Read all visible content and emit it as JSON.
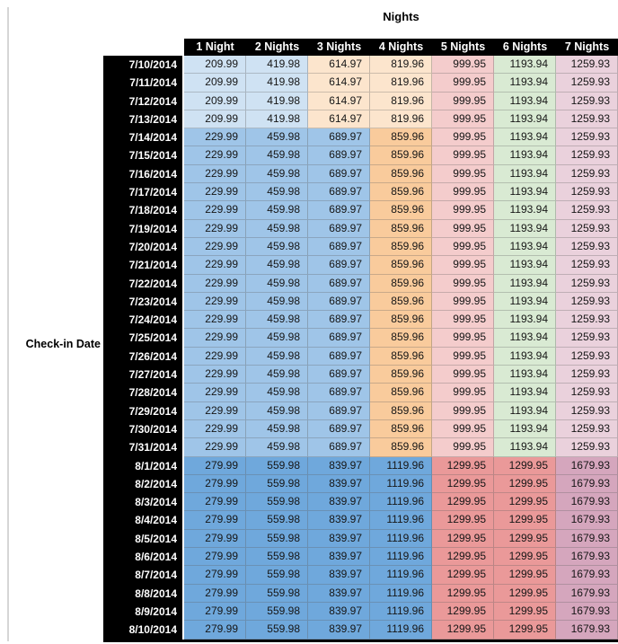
{
  "title": "Nights",
  "row_axis_label": "Check-in Date",
  "columns": [
    "1 Night",
    "2 Nights",
    "3 Nights",
    "4 Nights",
    "5 Nights",
    "6 Nights",
    "7 Nights"
  ],
  "styles": {
    "header_bg": "#000000",
    "header_text_color": "#ffffff",
    "date_cell_bg": "#000000",
    "date_text_color": "#ffffff",
    "value_text_color": "#161616",
    "left_rule_color": "#d6d6d6",
    "group_colors": {
      "a": [
        "#cfe2f3",
        "#cfe2f3",
        "#fce5cd",
        "#fce5cd",
        "#f4cccc",
        "#d9ead3",
        "#ead1dc"
      ],
      "b": [
        "#9fc5e8",
        "#9fc5e8",
        "#9fc5e8",
        "#f9cb9c",
        "#f4cccc",
        "#d9ead3",
        "#ead1dc"
      ],
      "c": [
        "#6fa8dc",
        "#6fa8dc",
        "#6fa8dc",
        "#6fa8dc",
        "#ea9999",
        "#ea9999",
        "#d5a6bd"
      ]
    }
  },
  "chart_data": {
    "type": "table",
    "title": "Nights",
    "row_label": "Check-in Date",
    "columns": [
      "1 Night",
      "2 Nights",
      "3 Nights",
      "4 Nights",
      "5 Nights",
      "6 Nights",
      "7 Nights"
    ],
    "rows": [
      {
        "date": "7/10/2014",
        "group": "a",
        "values": [
          "209.99",
          "419.98",
          "614.97",
          "819.96",
          "999.95",
          "1193.94",
          "1259.93"
        ]
      },
      {
        "date": "7/11/2014",
        "group": "a",
        "values": [
          "209.99",
          "419.98",
          "614.97",
          "819.96",
          "999.95",
          "1193.94",
          "1259.93"
        ]
      },
      {
        "date": "7/12/2014",
        "group": "a",
        "values": [
          "209.99",
          "419.98",
          "614.97",
          "819.96",
          "999.95",
          "1193.94",
          "1259.93"
        ]
      },
      {
        "date": "7/13/2014",
        "group": "a",
        "values": [
          "209.99",
          "419.98",
          "614.97",
          "819.96",
          "999.95",
          "1193.94",
          "1259.93"
        ]
      },
      {
        "date": "7/14/2014",
        "group": "b",
        "values": [
          "229.99",
          "459.98",
          "689.97",
          "859.96",
          "999.95",
          "1193.94",
          "1259.93"
        ]
      },
      {
        "date": "7/15/2014",
        "group": "b",
        "values": [
          "229.99",
          "459.98",
          "689.97",
          "859.96",
          "999.95",
          "1193.94",
          "1259.93"
        ]
      },
      {
        "date": "7/16/2014",
        "group": "b",
        "values": [
          "229.99",
          "459.98",
          "689.97",
          "859.96",
          "999.95",
          "1193.94",
          "1259.93"
        ]
      },
      {
        "date": "7/17/2014",
        "group": "b",
        "values": [
          "229.99",
          "459.98",
          "689.97",
          "859.96",
          "999.95",
          "1193.94",
          "1259.93"
        ]
      },
      {
        "date": "7/18/2014",
        "group": "b",
        "values": [
          "229.99",
          "459.98",
          "689.97",
          "859.96",
          "999.95",
          "1193.94",
          "1259.93"
        ]
      },
      {
        "date": "7/19/2014",
        "group": "b",
        "values": [
          "229.99",
          "459.98",
          "689.97",
          "859.96",
          "999.95",
          "1193.94",
          "1259.93"
        ]
      },
      {
        "date": "7/20/2014",
        "group": "b",
        "values": [
          "229.99",
          "459.98",
          "689.97",
          "859.96",
          "999.95",
          "1193.94",
          "1259.93"
        ]
      },
      {
        "date": "7/21/2014",
        "group": "b",
        "values": [
          "229.99",
          "459.98",
          "689.97",
          "859.96",
          "999.95",
          "1193.94",
          "1259.93"
        ]
      },
      {
        "date": "7/22/2014",
        "group": "b",
        "values": [
          "229.99",
          "459.98",
          "689.97",
          "859.96",
          "999.95",
          "1193.94",
          "1259.93"
        ]
      },
      {
        "date": "7/23/2014",
        "group": "b",
        "values": [
          "229.99",
          "459.98",
          "689.97",
          "859.96",
          "999.95",
          "1193.94",
          "1259.93"
        ]
      },
      {
        "date": "7/24/2014",
        "group": "b",
        "values": [
          "229.99",
          "459.98",
          "689.97",
          "859.96",
          "999.95",
          "1193.94",
          "1259.93"
        ]
      },
      {
        "date": "7/25/2014",
        "group": "b",
        "values": [
          "229.99",
          "459.98",
          "689.97",
          "859.96",
          "999.95",
          "1193.94",
          "1259.93"
        ]
      },
      {
        "date": "7/26/2014",
        "group": "b",
        "values": [
          "229.99",
          "459.98",
          "689.97",
          "859.96",
          "999.95",
          "1193.94",
          "1259.93"
        ]
      },
      {
        "date": "7/27/2014",
        "group": "b",
        "values": [
          "229.99",
          "459.98",
          "689.97",
          "859.96",
          "999.95",
          "1193.94",
          "1259.93"
        ]
      },
      {
        "date": "7/28/2014",
        "group": "b",
        "values": [
          "229.99",
          "459.98",
          "689.97",
          "859.96",
          "999.95",
          "1193.94",
          "1259.93"
        ]
      },
      {
        "date": "7/29/2014",
        "group": "b",
        "values": [
          "229.99",
          "459.98",
          "689.97",
          "859.96",
          "999.95",
          "1193.94",
          "1259.93"
        ]
      },
      {
        "date": "7/30/2014",
        "group": "b",
        "values": [
          "229.99",
          "459.98",
          "689.97",
          "859.96",
          "999.95",
          "1193.94",
          "1259.93"
        ]
      },
      {
        "date": "7/31/2014",
        "group": "b",
        "values": [
          "229.99",
          "459.98",
          "689.97",
          "859.96",
          "999.95",
          "1193.94",
          "1259.93"
        ]
      },
      {
        "date": "8/1/2014",
        "group": "c",
        "values": [
          "279.99",
          "559.98",
          "839.97",
          "1119.96",
          "1299.95",
          "1299.95",
          "1679.93"
        ]
      },
      {
        "date": "8/2/2014",
        "group": "c",
        "values": [
          "279.99",
          "559.98",
          "839.97",
          "1119.96",
          "1299.95",
          "1299.95",
          "1679.93"
        ]
      },
      {
        "date": "8/3/2014",
        "group": "c",
        "values": [
          "279.99",
          "559.98",
          "839.97",
          "1119.96",
          "1299.95",
          "1299.95",
          "1679.93"
        ]
      },
      {
        "date": "8/4/2014",
        "group": "c",
        "values": [
          "279.99",
          "559.98",
          "839.97",
          "1119.96",
          "1299.95",
          "1299.95",
          "1679.93"
        ]
      },
      {
        "date": "8/5/2014",
        "group": "c",
        "values": [
          "279.99",
          "559.98",
          "839.97",
          "1119.96",
          "1299.95",
          "1299.95",
          "1679.93"
        ]
      },
      {
        "date": "8/6/2014",
        "group": "c",
        "values": [
          "279.99",
          "559.98",
          "839.97",
          "1119.96",
          "1299.95",
          "1299.95",
          "1679.93"
        ]
      },
      {
        "date": "8/7/2014",
        "group": "c",
        "values": [
          "279.99",
          "559.98",
          "839.97",
          "1119.96",
          "1299.95",
          "1299.95",
          "1679.93"
        ]
      },
      {
        "date": "8/8/2014",
        "group": "c",
        "values": [
          "279.99",
          "559.98",
          "839.97",
          "1119.96",
          "1299.95",
          "1299.95",
          "1679.93"
        ]
      },
      {
        "date": "8/9/2014",
        "group": "c",
        "values": [
          "279.99",
          "559.98",
          "839.97",
          "1119.96",
          "1299.95",
          "1299.95",
          "1679.93"
        ]
      },
      {
        "date": "8/10/2014",
        "group": "c",
        "values": [
          "279.99",
          "559.98",
          "839.97",
          "1119.96",
          "1299.95",
          "1299.95",
          "1679.93"
        ]
      }
    ]
  }
}
